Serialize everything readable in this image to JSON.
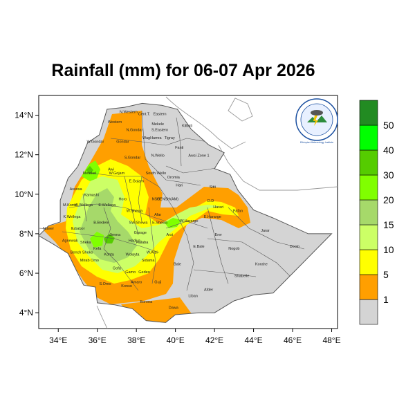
{
  "title": "Rainfall (mm) for 06-07 Apr 2026",
  "axes": {
    "lat_ticks": [
      "4°N",
      "6°N",
      "8°N",
      "10°N",
      "12°N",
      "14°N"
    ],
    "lon_ticks": [
      "34°E",
      "36°E",
      "38°E",
      "40°E",
      "42°E",
      "44°E",
      "46°E",
      "48°E"
    ],
    "lon_range": [
      33,
      48.3
    ],
    "lat_range": [
      3.2,
      15.0
    ]
  },
  "colorbar": {
    "labels": [
      "1",
      "5",
      "10",
      "15",
      "20",
      "30",
      "40",
      "50"
    ],
    "colors": [
      "#d4d4d4",
      "#ff9f00",
      "#ffff00",
      "#ccff66",
      "#a6d96a",
      "#80ff00",
      "#55cc00",
      "#00ff00",
      "#228b22"
    ]
  },
  "logo": {
    "text": "Ethiopian Meteorology Institute",
    "color": "#1a4fa0"
  },
  "regions": [
    {
      "label": "N.Western",
      "lon": 37.6,
      "lat": 14.1
    },
    {
      "label": "Cent.T.",
      "lon": 38.4,
      "lat": 14.0
    },
    {
      "label": "Eastern",
      "lon": 39.2,
      "lat": 14.0
    },
    {
      "label": "Western",
      "lon": 36.9,
      "lat": 13.6
    },
    {
      "label": "Mekele",
      "lon": 39.1,
      "lat": 13.5
    },
    {
      "label": "S.Eastern",
      "lon": 39.2,
      "lat": 13.2
    },
    {
      "label": "N.Gondar",
      "lon": 37.9,
      "lat": 13.2
    },
    {
      "label": "Kilbati",
      "lon": 40.6,
      "lat": 13.4
    },
    {
      "label": "WagHamra",
      "lon": 38.8,
      "lat": 12.8
    },
    {
      "label": "Tigray",
      "lon": 39.7,
      "lat": 12.8
    },
    {
      "label": "W.Gondar",
      "lon": 35.9,
      "lat": 12.6
    },
    {
      "label": "Gondar",
      "lon": 37.3,
      "lat": 12.6
    },
    {
      "label": "Fanti",
      "lon": 40.2,
      "lat": 12.3
    },
    {
      "label": "N.Wello",
      "lon": 39.1,
      "lat": 11.9
    },
    {
      "label": "Awsi Zone 1",
      "lon": 41.2,
      "lat": 11.9
    },
    {
      "label": "S.Gondar",
      "lon": 37.8,
      "lat": 11.8
    },
    {
      "label": "Metekel",
      "lon": 35.6,
      "lat": 11.0
    },
    {
      "label": "Awi",
      "lon": 36.7,
      "lat": 11.2
    },
    {
      "label": "W.Gojam",
      "lon": 37.0,
      "lat": 11.0
    },
    {
      "label": "South Wello",
      "lon": 39.0,
      "lat": 11.0
    },
    {
      "label": "E.Gojam",
      "lon": 38.0,
      "lat": 10.6
    },
    {
      "label": "Oromia",
      "lon": 39.9,
      "lat": 10.8
    },
    {
      "label": "Hari",
      "lon": 40.2,
      "lat": 10.4
    },
    {
      "label": "Assosa",
      "lon": 34.9,
      "lat": 10.2
    },
    {
      "label": "Sitti",
      "lon": 41.9,
      "lat": 10.3
    },
    {
      "label": "Kamashi",
      "lon": 35.7,
      "lat": 9.9
    },
    {
      "label": "Horo",
      "lon": 37.3,
      "lat": 9.7
    },
    {
      "label": "NSH",
      "lon": 39.0,
      "lat": 9.7
    },
    {
      "label": "CENSH(AM)",
      "lon": 39.6,
      "lat": 9.7
    },
    {
      "label": "D.D",
      "lon": 41.8,
      "lat": 9.6
    },
    {
      "label": "Harari",
      "lon": 42.2,
      "lat": 9.3
    },
    {
      "label": "M.Komo",
      "lon": 34.6,
      "lat": 9.4
    },
    {
      "label": "W.Wellega",
      "lon": 35.3,
      "lat": 9.4
    },
    {
      "label": "E.Wellega",
      "lon": 36.5,
      "lat": 9.4
    },
    {
      "label": "W.Shewa",
      "lon": 37.9,
      "lat": 9.1
    },
    {
      "label": "Fafan",
      "lon": 43.2,
      "lat": 9.1
    },
    {
      "label": "K.Wellega",
      "lon": 34.7,
      "lat": 8.8
    },
    {
      "label": "Afar",
      "lon": 39.1,
      "lat": 8.9
    },
    {
      "label": "W.Hararge",
      "lon": 40.7,
      "lat": 8.6
    },
    {
      "label": "E.Hararge",
      "lon": 41.9,
      "lat": 8.8
    },
    {
      "label": "B.Bedele",
      "lon": 36.2,
      "lat": 8.5
    },
    {
      "label": "SW.Shewa",
      "lon": 38.1,
      "lat": 8.5
    },
    {
      "label": "E.Shewa",
      "lon": 39.2,
      "lat": 8.5
    },
    {
      "label": "Ilubabor",
      "lon": 35.0,
      "lat": 8.2
    },
    {
      "label": "Nuwer",
      "lon": 33.5,
      "lat": 8.2
    },
    {
      "label": "Jarar",
      "lon": 44.6,
      "lat": 8.1
    },
    {
      "label": "Gurage",
      "lon": 38.2,
      "lat": 8.0
    },
    {
      "label": "Arsi",
      "lon": 39.7,
      "lat": 7.9
    },
    {
      "label": "Erer",
      "lon": 42.2,
      "lat": 7.9
    },
    {
      "label": "Agnewak",
      "lon": 34.6,
      "lat": 7.6
    },
    {
      "label": "Jimma",
      "lon": 36.9,
      "lat": 7.9
    },
    {
      "label": "Hadiya",
      "lon": 37.9,
      "lat": 7.6
    },
    {
      "label": "Halaba",
      "lon": 38.3,
      "lat": 7.5
    },
    {
      "label": "Sheka",
      "lon": 35.4,
      "lat": 7.5
    },
    {
      "label": "Kefa",
      "lon": 36.0,
      "lat": 7.2
    },
    {
      "label": "Bench Sheko",
      "lon": 35.2,
      "lat": 7.0
    },
    {
      "label": "Wolayta",
      "lon": 37.8,
      "lat": 6.9
    },
    {
      "label": "W.Arsi",
      "lon": 38.8,
      "lat": 7.0
    },
    {
      "label": "E.Bale",
      "lon": 41.2,
      "lat": 7.3
    },
    {
      "label": "Nogob",
      "lon": 43.0,
      "lat": 7.2
    },
    {
      "label": "Doolo",
      "lon": 46.1,
      "lat": 7.3
    },
    {
      "label": "Konta",
      "lon": 36.6,
      "lat": 6.9
    },
    {
      "label": "Sidama",
      "lon": 38.6,
      "lat": 6.6
    },
    {
      "label": "Bale",
      "lon": 40.1,
      "lat": 6.4
    },
    {
      "label": "Korahe",
      "lon": 44.4,
      "lat": 6.4
    },
    {
      "label": "Mirab Omo",
      "lon": 35.6,
      "lat": 6.6
    },
    {
      "label": "Gofa",
      "lon": 37.0,
      "lat": 6.2
    },
    {
      "label": "Gamo",
      "lon": 37.7,
      "lat": 6.0
    },
    {
      "label": "Gedeo",
      "lon": 38.4,
      "lat": 6.0
    },
    {
      "label": "Shabelle",
      "lon": 43.4,
      "lat": 5.8
    },
    {
      "label": "Amaro",
      "lon": 38.0,
      "lat": 5.5
    },
    {
      "label": "Guji",
      "lon": 39.1,
      "lat": 5.5
    },
    {
      "label": "Afder",
      "lon": 41.7,
      "lat": 5.1
    },
    {
      "label": "S.Omo",
      "lon": 36.4,
      "lat": 5.4
    },
    {
      "label": "Konso",
      "lon": 37.5,
      "lat": 5.3
    },
    {
      "label": "Liban",
      "lon": 40.9,
      "lat": 4.8
    },
    {
      "label": "Borena",
      "lon": 38.5,
      "lat": 4.5
    },
    {
      "label": "Dawa",
      "lon": 39.9,
      "lat": 4.2
    }
  ]
}
